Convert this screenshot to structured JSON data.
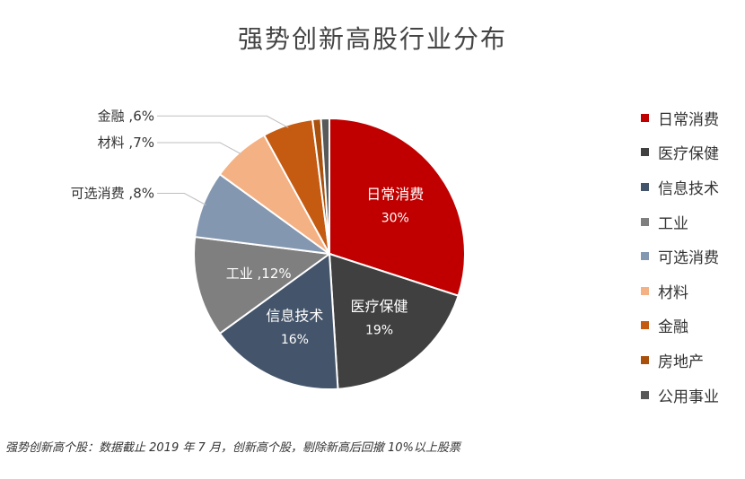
{
  "page": {
    "footnote": "强势创新高个股：数据截止 2019 年 7 月，创新高个股，剔除新高后回撤 10%以上股票"
  },
  "chart_data": {
    "type": "pie",
    "title": "强势创新高股行业分布",
    "legend_position": "right",
    "slices": [
      {
        "name": "日常消费",
        "value": 30,
        "percent_label": "30%",
        "color": "#C00000",
        "label_style": "inside"
      },
      {
        "name": "医疗保健",
        "value": 19,
        "percent_label": "19%",
        "color": "#404040",
        "label_style": "inside"
      },
      {
        "name": "信息技术",
        "value": 16,
        "percent_label": "16%",
        "color": "#44546A",
        "label_style": "inside"
      },
      {
        "name": "工业",
        "value": 12,
        "percent_label": "12%",
        "color": "#7F7F7F",
        "label_style": "inside-inline"
      },
      {
        "name": "可选消费",
        "value": 8,
        "percent_label": "8%",
        "color": "#8497B0",
        "label_style": "outside"
      },
      {
        "name": "材料",
        "value": 7,
        "percent_label": "7%",
        "color": "#F4B183",
        "label_style": "outside"
      },
      {
        "name": "金融",
        "value": 6,
        "percent_label": "6%",
        "color": "#C55A11",
        "label_style": "outside"
      },
      {
        "name": "房地产",
        "value": 1,
        "percent_label": "",
        "color": "#A9500C",
        "label_style": "none"
      },
      {
        "name": "公用事业",
        "value": 1,
        "percent_label": "",
        "color": "#595959",
        "label_style": "none"
      }
    ]
  }
}
